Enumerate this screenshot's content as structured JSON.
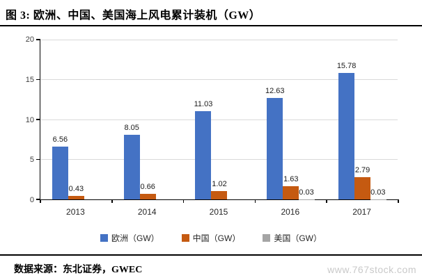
{
  "header": {
    "title": "图  3:  欧洲、中国、美国海上风电累计装机（GW）"
  },
  "chart_data": {
    "type": "bar",
    "title": "欧洲、中国、美国海上风电累计装机（GW）",
    "categories": [
      "2013",
      "2014",
      "2015",
      "2016",
      "2017"
    ],
    "series": [
      {
        "name": "欧洲（GW）",
        "color": "#4472c4",
        "values": [
          6.56,
          8.05,
          11.03,
          12.63,
          15.78
        ]
      },
      {
        "name": "中国（GW）",
        "color": "#c55a11",
        "values": [
          0.43,
          0.66,
          1.02,
          1.63,
          2.79
        ]
      },
      {
        "name": "美国（GW）",
        "color": "#a5a5a5",
        "values": [
          null,
          null,
          null,
          0.03,
          0.03
        ]
      }
    ],
    "ylim": [
      0,
      20
    ],
    "yticks": [
      0,
      5,
      10,
      15,
      20
    ],
    "xlabel": "",
    "ylabel": "",
    "grid": true,
    "gridline_color": "#d9d9d9",
    "legend_position": "bottom",
    "data_labels": true
  },
  "footer": {
    "source_label": "数据来源：东北证券，GWEC",
    "watermark": "www.767stock.com"
  }
}
